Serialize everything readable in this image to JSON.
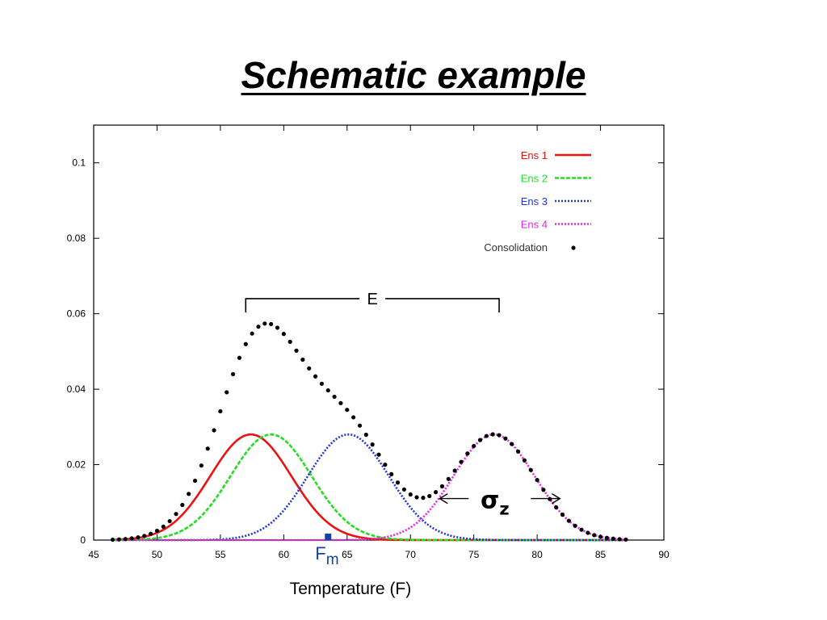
{
  "title": "Schematic example",
  "chart_data": {
    "type": "line",
    "xlabel": "Temperature (F)",
    "ylabel": "",
    "xlim": [
      45,
      90
    ],
    "ylim": [
      0,
      0.11
    ],
    "xticks": [
      45,
      50,
      55,
      60,
      65,
      70,
      75,
      80,
      85,
      90
    ],
    "xtick_labels": [
      "45",
      "50",
      "55",
      "60",
      "65",
      "70",
      "75",
      "80",
      "85",
      "90"
    ],
    "yticks": [
      0,
      0.02,
      0.04,
      0.06,
      0.08,
      0.1
    ],
    "ytick_labels": [
      "0",
      "0.02",
      "0.04",
      "0.06",
      "0.08",
      "0.1"
    ],
    "grid": false,
    "legend_position": "top-right",
    "series": [
      {
        "name": "Ens 1",
        "color": "#ee1111",
        "style": "solid",
        "mean": 57.4,
        "sd": 3.2,
        "peak": 0.028
      },
      {
        "name": "Ens 2",
        "color": "#22dd22",
        "style": "dashed",
        "mean": 59.0,
        "sd": 3.2,
        "peak": 0.028
      },
      {
        "name": "Ens 3",
        "color": "#2233dd",
        "style": "dotted",
        "mean": 65.1,
        "sd": 3.2,
        "peak": 0.028
      },
      {
        "name": "Ens 4",
        "color": "#ee22ee",
        "style": "dotted",
        "mean": 76.6,
        "sd": 3.2,
        "peak": 0.028
      },
      {
        "name": "Consolidation",
        "color": "#000000",
        "style": "markers",
        "x_range": [
          46.5,
          87
        ],
        "step": 0.5
      }
    ],
    "annotations": {
      "bracket_label": "E",
      "bracket_x": [
        57,
        77
      ],
      "bracket_y": 0.064,
      "sigma_label": "σ",
      "sigma_sub": "z",
      "sigma_arrow_x": [
        72.3,
        81.8
      ],
      "sigma_y": 0.011,
      "marker_label": "F",
      "marker_sub": "m",
      "marker_x": 63.5,
      "marker_color": "#1144aa"
    }
  }
}
